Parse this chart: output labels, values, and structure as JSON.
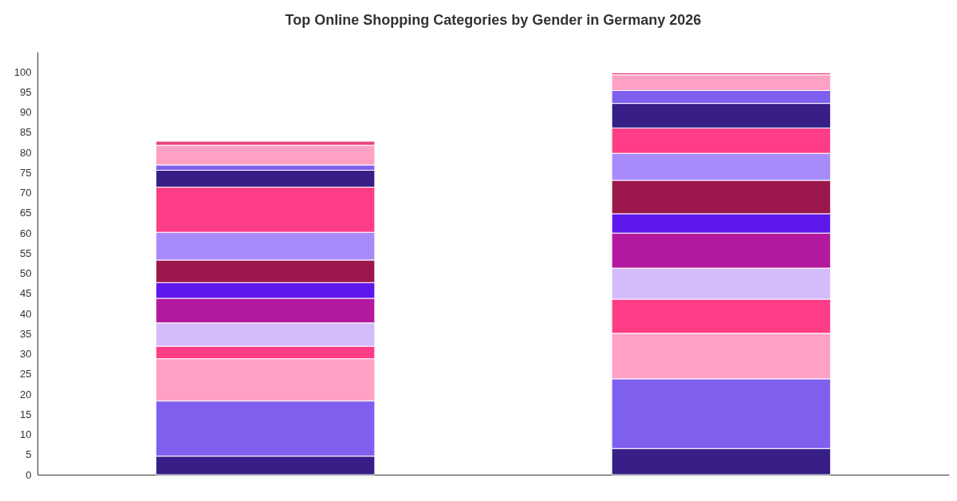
{
  "chart_data": {
    "type": "bar",
    "title": "Top Online Shopping Categories by Gender in Germany 2026",
    "categories": [
      null,
      null
    ],
    "stacked": true,
    "ylim": [
      0,
      105
    ],
    "yticks": [
      0,
      5,
      10,
      15,
      20,
      25,
      30,
      35,
      40,
      45,
      50,
      55,
      60,
      65,
      70,
      75,
      80,
      85,
      90,
      95,
      100
    ],
    "grid": false,
    "legend": false,
    "tick_labels": "y",
    "series": [
      {
        "color": "#371f87",
        "values": [
          4.6,
          6.5
        ]
      },
      {
        "color": "#7f5fee",
        "values": [
          13.7,
          17.3
        ]
      },
      {
        "color": "#ffa1c4",
        "values": [
          10.5,
          11.3
        ]
      },
      {
        "color": "#ff3d87",
        "values": [
          3.1,
          8.5
        ]
      },
      {
        "color": "#d4bbfa",
        "values": [
          5.8,
          7.7
        ]
      },
      {
        "color": "#b3199e",
        "values": [
          6.1,
          8.7
        ]
      },
      {
        "color": "#5e17eb",
        "values": [
          3.9,
          4.8
        ]
      },
      {
        "color": "#9b174c",
        "values": [
          5.6,
          8.3
        ]
      },
      {
        "color": "#a78bfa",
        "values": [
          6.9,
          6.7
        ]
      },
      {
        "color": "#ff3d87",
        "values": [
          11.2,
          6.3
        ]
      },
      {
        "color": "#371f87",
        "values": [
          4.2,
          6.1
        ]
      },
      {
        "color": "#7f5fee",
        "values": [
          1.3,
          3.2
        ]
      },
      {
        "color": "#ffa1c4",
        "values": [
          4.9,
          3.9
        ]
      },
      {
        "color": "#e8457f",
        "values": [
          1.0,
          0.5
        ]
      }
    ]
  }
}
